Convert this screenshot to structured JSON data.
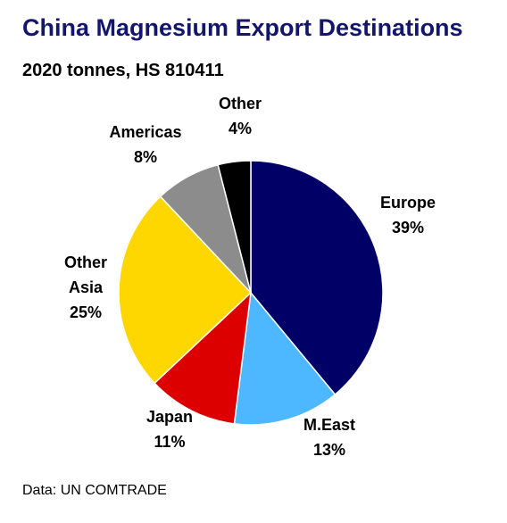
{
  "title": "China Magnesium Export Destinations",
  "subtitle": "2020 tonnes, HS 810411",
  "source": "Data: UN COMTRADE",
  "chart_data": {
    "type": "pie",
    "title": "China Magnesium Export Destinations",
    "subtitle": "2020 tonnes, HS 810411",
    "start_angle": "12 o'clock",
    "direction": "clockwise",
    "slices": [
      {
        "name": "Europe",
        "value": 39,
        "label_lines": [
          "Europe",
          "39%"
        ],
        "color": "#000066"
      },
      {
        "name": "M.East",
        "value": 13,
        "label_lines": [
          "M.East",
          "13%"
        ],
        "color": "#4db8ff"
      },
      {
        "name": "Japan",
        "value": 11,
        "label_lines": [
          "Japan",
          "11%"
        ],
        "color": "#dd0000"
      },
      {
        "name": "Other Asia",
        "value": 25,
        "label_lines": [
          "Other",
          "Asia",
          "25%"
        ],
        "color": "#ffd700"
      },
      {
        "name": "Americas",
        "value": 8,
        "label_lines": [
          "Americas",
          "8%"
        ],
        "color": "#8c8c8c"
      },
      {
        "name": "Other",
        "value": 4,
        "label_lines": [
          "Other",
          "4%"
        ],
        "color": "#000000"
      }
    ]
  }
}
